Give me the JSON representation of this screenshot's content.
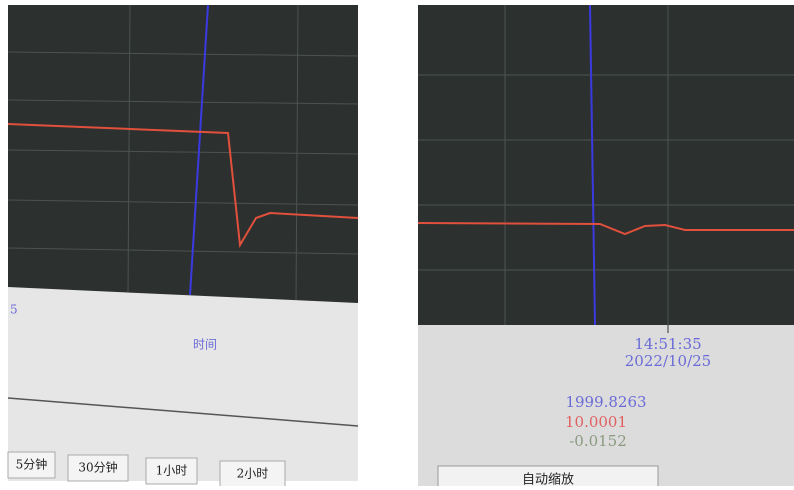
{
  "left_panel": {
    "partial_label": "5",
    "axis_label": "时间",
    "buttons": [
      "5分钟",
      "30分钟",
      "1小时",
      "2小时"
    ]
  },
  "right_panel": {
    "time": "14:51:35",
    "date": "2022/10/25",
    "readings": [
      "1999.8263",
      "10.0001",
      "-0.0152"
    ],
    "button": "自动缩放"
  }
}
